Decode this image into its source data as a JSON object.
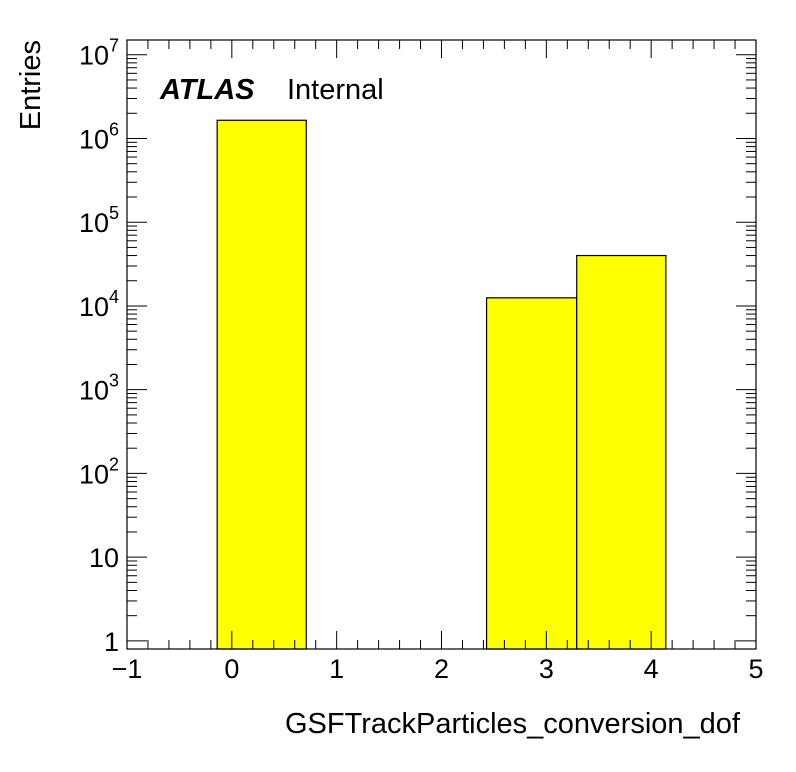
{
  "chart_data": {
    "type": "bar",
    "xlabel": "GSFTrackParticles_conversion_dof",
    "ylabel": "Entries",
    "xlim": [
      -1,
      5
    ],
    "ylim": [
      0.8,
      15000000
    ],
    "y_scale": "log",
    "x_tick_labels": [
      "−1",
      "0",
      "1",
      "2",
      "3",
      "4",
      "5"
    ],
    "x_tick_values": [
      -1,
      0,
      1,
      2,
      3,
      4,
      5
    ],
    "y_tick_labels": [
      {
        "value": 1,
        "base": "1",
        "exp": ""
      },
      {
        "value": 10,
        "base": "10",
        "exp": ""
      },
      {
        "value": 100,
        "base": "10",
        "exp": "2"
      },
      {
        "value": 1000,
        "base": "10",
        "exp": "3"
      },
      {
        "value": 10000,
        "base": "10",
        "exp": "4"
      },
      {
        "value": 100000,
        "base": "10",
        "exp": "5"
      },
      {
        "value": 1000000,
        "base": "10",
        "exp": "6"
      },
      {
        "value": 10000000,
        "base": "10",
        "exp": "7"
      }
    ],
    "bins": [
      {
        "low": -0.14,
        "high": 0.71,
        "value": 1650000
      },
      {
        "low": 2.43,
        "high": 3.29,
        "value": 12500
      },
      {
        "low": 3.29,
        "high": 4.14,
        "value": 40000
      }
    ],
    "fill_color": "#ffff00",
    "line_color": "#000000",
    "grid": false
  },
  "labels": {
    "atlas": "ATLAS",
    "internal": "Internal"
  }
}
